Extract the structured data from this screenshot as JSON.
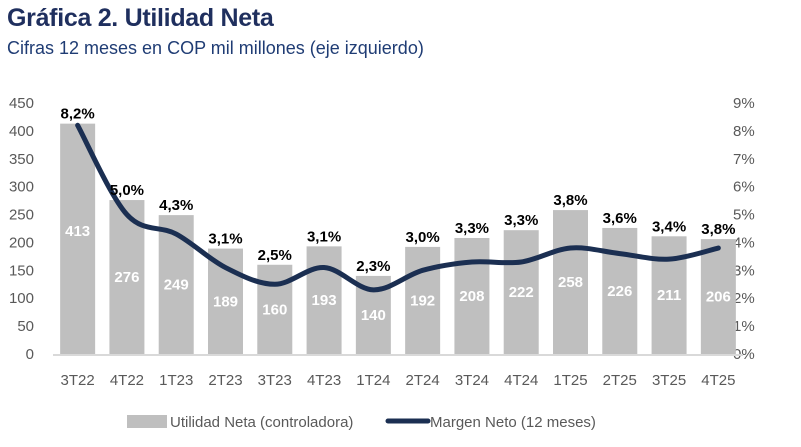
{
  "chart_data": {
    "type": "bar",
    "title": "Gráfica 2. Utilidad Neta",
    "subtitle": "Cifras 12 meses en COP mil millones (eje izquierdo)",
    "categories": [
      "3T22",
      "4T22",
      "1T23",
      "2T23",
      "3T23",
      "4T23",
      "1T24",
      "2T24",
      "3T24",
      "4T24",
      "1T25",
      "2T25",
      "3T25",
      "4T25"
    ],
    "series": [
      {
        "name": "Utilidad Neta (controladora)",
        "type": "bar",
        "axis": "left",
        "color": "#bfbfbf",
        "values": [
          413,
          276,
          249,
          189,
          160,
          193,
          140,
          192,
          208,
          222,
          258,
          226,
          211,
          206
        ],
        "labels": [
          "413",
          "276",
          "249",
          "189",
          "160",
          "193",
          "140",
          "192",
          "208",
          "222",
          "258",
          "226",
          "211",
          "206"
        ]
      },
      {
        "name": "Margen Neto (12 meses)",
        "type": "line",
        "axis": "right",
        "color": "#1b2f52",
        "smooth": true,
        "values": [
          8.2,
          5.0,
          4.3,
          3.1,
          2.5,
          3.1,
          2.3,
          3.0,
          3.3,
          3.3,
          3.8,
          3.6,
          3.4,
          3.8
        ],
        "labels": [
          "8,2%",
          "5,0%",
          "4,3%",
          "3,1%",
          "2,5%",
          "3,1%",
          "2,3%",
          "3,0%",
          "3,3%",
          "3,3%",
          "3,8%",
          "3,6%",
          "3,4%",
          "3,8%"
        ]
      }
    ],
    "left_axis": {
      "ylim": [
        0,
        450
      ],
      "ticks": [
        "0",
        "50",
        "100",
        "150",
        "200",
        "250",
        "300",
        "350",
        "400",
        "450"
      ]
    },
    "right_axis": {
      "ylim": [
        0,
        9
      ],
      "ticks": [
        "0%",
        "1%",
        "2%",
        "3%",
        "4%",
        "5%",
        "6%",
        "7%",
        "8%",
        "9%"
      ]
    },
    "grid": false,
    "legend_position": "bottom"
  }
}
